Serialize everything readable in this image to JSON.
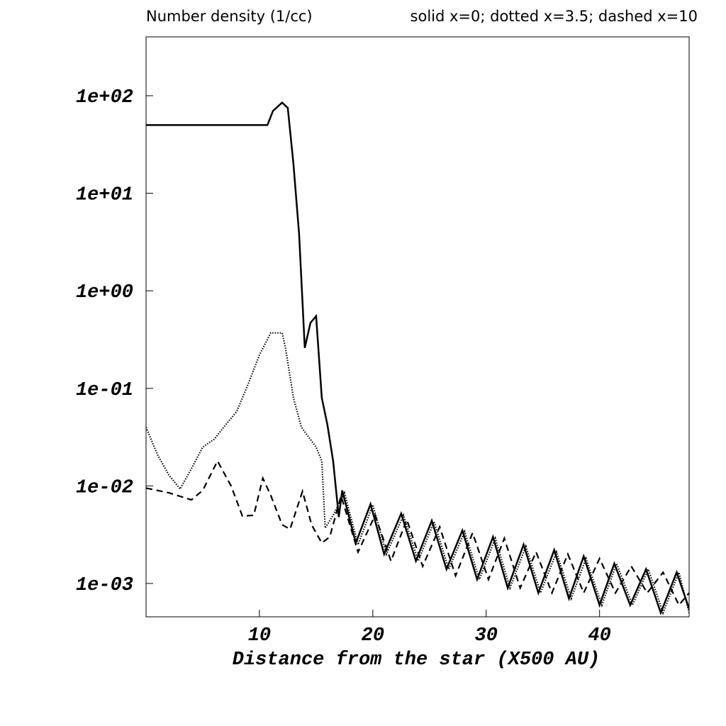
{
  "chart_data": {
    "type": "line",
    "title": "Number density (1/cc)",
    "subtitle": "solid x=0; dotted x=3.5; dashed x=10",
    "x_label": "Distance from the star (X500 AU)",
    "xlim": [
      0,
      47.9
    ],
    "ylim": [
      0.000455,
      401
    ],
    "y_scale": "log",
    "xticks": [
      10,
      20,
      30,
      40
    ],
    "yticks": [
      {
        "value": 0.001,
        "label": "1e-03"
      },
      {
        "value": 0.01,
        "label": "1e-02"
      },
      {
        "value": 0.1,
        "label": "1e-01"
      },
      {
        "value": 1,
        "label": "1e+00"
      },
      {
        "value": 10,
        "label": "1e+01"
      },
      {
        "value": 100,
        "label": "1e+02"
      }
    ],
    "series": [
      {
        "style": "solid",
        "color": "#000000",
        "x": [
          0,
          10.7,
          11.2,
          12,
          12.5,
          13,
          13.5,
          14,
          14.5,
          15,
          15.5,
          16,
          16.5,
          17,
          17.3,
          18.5,
          19.8,
          21,
          22.5,
          23.8,
          25.2,
          26.5,
          27.9,
          29.2,
          30.6,
          31.9,
          33.3,
          34.6,
          36,
          37.3,
          38.6,
          40,
          41.3,
          42.7,
          44.1,
          45.4,
          46.8,
          47.9
        ],
        "values": [
          50,
          50,
          70,
          85,
          75,
          20,
          3.8,
          0.26,
          0.47,
          0.55,
          0.08,
          0.042,
          0.018,
          0.0048,
          0.009,
          0.0026,
          0.0065,
          0.002,
          0.0052,
          0.0017,
          0.0044,
          0.0014,
          0.0035,
          0.0011,
          0.003,
          0.0009,
          0.0025,
          0.0008,
          0.0022,
          0.0007,
          0.0019,
          0.0006,
          0.0016,
          0.0006,
          0.0014,
          0.0005,
          0.0013,
          0.00055
        ]
      },
      {
        "style": "dotted",
        "color": "#000000",
        "x": [
          0,
          1,
          2,
          3,
          4,
          5,
          6,
          7,
          8,
          9,
          10,
          11,
          12,
          12.3,
          13,
          13.7,
          15,
          15.5,
          15.8,
          16.5,
          17.5,
          18.7,
          20,
          21.2,
          22.7,
          24,
          25.4,
          26.7,
          28.1,
          29.4,
          30.8,
          32.1,
          33.5,
          34.8,
          36.2,
          37.5,
          38.8,
          40.2,
          41.5,
          42.9,
          44.3,
          45.6,
          47,
          47.9
        ],
        "values": [
          0.04,
          0.021,
          0.013,
          0.0093,
          0.015,
          0.025,
          0.03,
          0.042,
          0.058,
          0.11,
          0.22,
          0.37,
          0.37,
          0.26,
          0.08,
          0.04,
          0.025,
          0.018,
          0.0037,
          0.005,
          0.0085,
          0.0025,
          0.0064,
          0.002,
          0.005,
          0.0017,
          0.0043,
          0.0014,
          0.0034,
          0.0011,
          0.0029,
          0.0009,
          0.0024,
          0.0008,
          0.0021,
          0.0007,
          0.0018,
          0.0006,
          0.0016,
          0.0006,
          0.0014,
          0.0005,
          0.0013,
          0.0005
        ]
      },
      {
        "style": "dashed",
        "color": "#000000",
        "x": [
          0,
          2,
          4,
          5,
          6.3,
          7.5,
          8.5,
          9.5,
          10.3,
          11,
          12,
          12.7,
          13.8,
          14.6,
          15.5,
          16.2,
          17.2,
          18.7,
          20.2,
          21.6,
          23,
          24.4,
          25.9,
          27.3,
          28.8,
          30.2,
          31.6,
          33,
          34.4,
          35.8,
          37.2,
          38.6,
          40,
          41.4,
          42.8,
          44.2,
          45.6,
          47,
          47.9
        ],
        "values": [
          0.0095,
          0.0085,
          0.0072,
          0.009,
          0.018,
          0.01,
          0.0049,
          0.005,
          0.012,
          0.008,
          0.004,
          0.0036,
          0.0088,
          0.004,
          0.0026,
          0.003,
          0.0079,
          0.0021,
          0.005,
          0.0017,
          0.0045,
          0.0015,
          0.0038,
          0.0012,
          0.0033,
          0.0011,
          0.0029,
          0.0009,
          0.0021,
          0.0008,
          0.002,
          0.0008,
          0.0018,
          0.0008,
          0.0015,
          0.0008,
          0.0013,
          0.0006,
          0.0008
        ]
      }
    ]
  }
}
